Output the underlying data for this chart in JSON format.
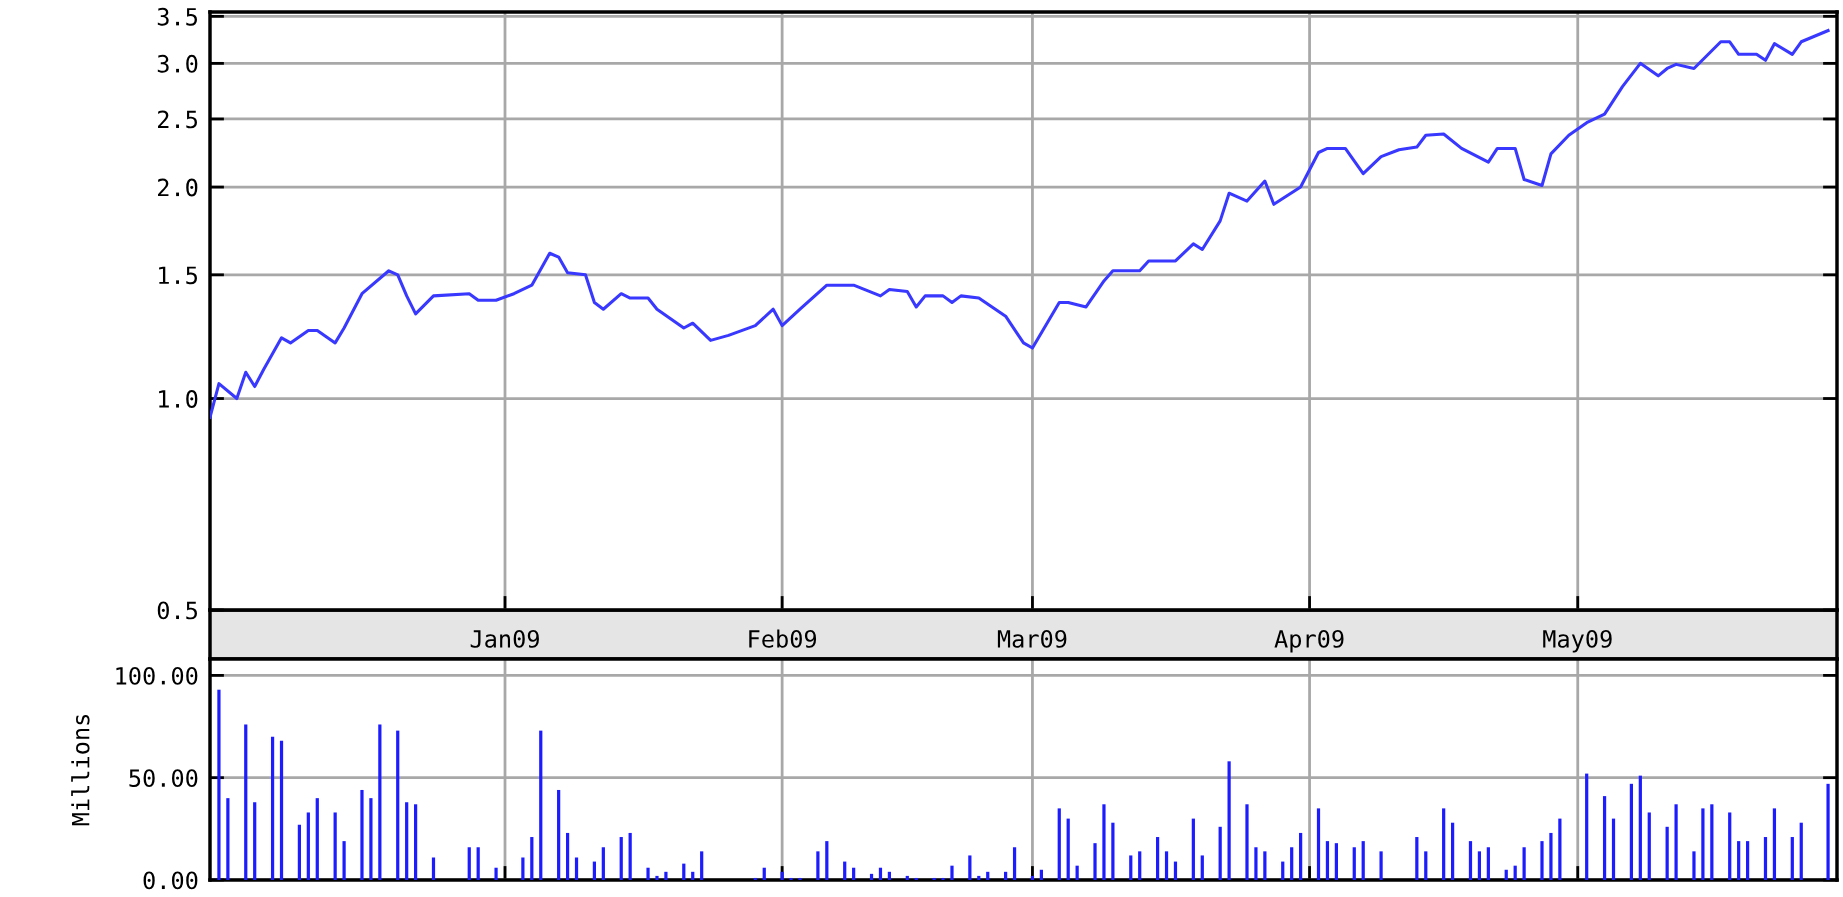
{
  "chart_data": [
    {
      "type": "line",
      "x": [
        "2008-11-29",
        "2008-11-30",
        "2008-12-02",
        "2008-12-03",
        "2008-12-04",
        "2008-12-05",
        "2008-12-07",
        "2008-12-08",
        "2008-12-10",
        "2008-12-11",
        "2008-12-13",
        "2008-12-14",
        "2008-12-16",
        "2008-12-19",
        "2008-12-20",
        "2008-12-21",
        "2008-12-22",
        "2008-12-24",
        "2008-12-28",
        "2008-12-29",
        "2008-12-31",
        "2009-01-02",
        "2009-01-04",
        "2009-01-06",
        "2009-01-07",
        "2009-01-08",
        "2009-01-10",
        "2009-01-11",
        "2009-01-12",
        "2009-01-14",
        "2009-01-15",
        "2009-01-17",
        "2009-01-18",
        "2009-01-21",
        "2009-01-22",
        "2009-01-24",
        "2009-01-26",
        "2009-01-29",
        "2009-01-31",
        "2009-02-01",
        "2009-02-03",
        "2009-02-06",
        "2009-02-09",
        "2009-02-12",
        "2009-02-13",
        "2009-02-15",
        "2009-02-16",
        "2009-02-17",
        "2009-02-19",
        "2009-02-20",
        "2009-02-21",
        "2009-02-23",
        "2009-02-26",
        "2009-02-28",
        "2009-03-01",
        "2009-03-04",
        "2009-03-05",
        "2009-03-07",
        "2009-03-09",
        "2009-03-10",
        "2009-03-13",
        "2009-03-14",
        "2009-03-17",
        "2009-03-19",
        "2009-03-20",
        "2009-03-22",
        "2009-03-23",
        "2009-03-25",
        "2009-03-27",
        "2009-03-28",
        "2009-03-31",
        "2009-04-02",
        "2009-04-03",
        "2009-04-05",
        "2009-04-07",
        "2009-04-09",
        "2009-04-11",
        "2009-04-13",
        "2009-04-14",
        "2009-04-16",
        "2009-04-18",
        "2009-04-21",
        "2009-04-22",
        "2009-04-24",
        "2009-04-25",
        "2009-04-27",
        "2009-04-28",
        "2009-04-30",
        "2009-05-02",
        "2009-05-04",
        "2009-05-06",
        "2009-05-08",
        "2009-05-10",
        "2009-05-11",
        "2009-05-12",
        "2009-05-14",
        "2009-05-17",
        "2009-05-18",
        "2009-05-19",
        "2009-05-21",
        "2009-05-22",
        "2009-05-23",
        "2009-05-25",
        "2009-05-26",
        "2009-05-29"
      ],
      "series": [
        {
          "color": "#3838ff",
          "values": [
            0.94,
            1.05,
            1.0,
            1.09,
            1.04,
            1.1,
            1.22,
            1.2,
            1.25,
            1.25,
            1.2,
            1.26,
            1.41,
            1.52,
            1.5,
            1.4,
            1.32,
            1.4,
            1.41,
            1.38,
            1.38,
            1.41,
            1.45,
            1.61,
            1.59,
            1.51,
            1.5,
            1.37,
            1.34,
            1.41,
            1.39,
            1.39,
            1.34,
            1.26,
            1.28,
            1.21,
            1.23,
            1.27,
            1.34,
            1.27,
            1.34,
            1.45,
            1.45,
            1.4,
            1.43,
            1.42,
            1.35,
            1.4,
            1.4,
            1.37,
            1.4,
            1.39,
            1.31,
            1.2,
            1.18,
            1.37,
            1.37,
            1.35,
            1.47,
            1.52,
            1.52,
            1.57,
            1.57,
            1.66,
            1.63,
            1.79,
            1.96,
            1.91,
            2.04,
            1.89,
            2.0,
            2.24,
            2.27,
            2.27,
            2.09,
            2.21,
            2.26,
            2.28,
            2.37,
            2.38,
            2.27,
            2.17,
            2.27,
            2.27,
            2.05,
            2.01,
            2.23,
            2.37,
            2.47,
            2.54,
            2.78,
            3.0,
            2.88,
            2.95,
            2.99,
            2.95,
            3.22,
            3.22,
            3.09,
            3.09,
            3.03,
            3.2,
            3.09,
            3.22,
            3.34
          ]
        }
      ],
      "xlim": [
        "2008-11-29",
        "2009-05-30"
      ],
      "xticks": [
        {
          "value": "2009-01-01",
          "label": "Jan09"
        },
        {
          "value": "2009-02-01",
          "label": "Feb09"
        },
        {
          "value": "2009-03-01",
          "label": "Mar09"
        },
        {
          "value": "2009-04-01",
          "label": "Apr09"
        },
        {
          "value": "2009-05-01",
          "label": "May09"
        }
      ],
      "ylim": [
        0.5,
        3.55
      ],
      "log": true,
      "yticks": [
        {
          "value": 0.5,
          "label": "0.5"
        },
        {
          "value": 1.0,
          "label": "1.0"
        },
        {
          "value": 1.5,
          "label": "1.5"
        },
        {
          "value": 2.0,
          "label": "2.0"
        },
        {
          "value": 2.5,
          "label": "2.5"
        },
        {
          "value": 3.0,
          "label": "3.0"
        },
        {
          "value": 3.5,
          "label": "3.5"
        }
      ],
      "grid": true
    },
    {
      "type": "bar",
      "x": [
        "2008-11-30",
        "2008-12-01",
        "2008-12-03",
        "2008-12-04",
        "2008-12-06",
        "2008-12-07",
        "2008-12-09",
        "2008-12-10",
        "2008-12-11",
        "2008-12-13",
        "2008-12-14",
        "2008-12-16",
        "2008-12-17",
        "2008-12-18",
        "2008-12-20",
        "2008-12-21",
        "2008-12-22",
        "2008-12-24",
        "2008-12-28",
        "2008-12-29",
        "2008-12-31",
        "2009-01-03",
        "2009-01-04",
        "2009-01-05",
        "2009-01-07",
        "2009-01-08",
        "2009-01-09",
        "2009-01-11",
        "2009-01-12",
        "2009-01-14",
        "2009-01-15",
        "2009-01-17",
        "2009-01-18",
        "2009-01-19",
        "2009-01-21",
        "2009-01-22",
        "2009-01-23",
        "2009-01-29",
        "2009-01-30",
        "2009-02-01",
        "2009-02-02",
        "2009-02-03",
        "2009-02-05",
        "2009-02-06",
        "2009-02-08",
        "2009-02-09",
        "2009-02-11",
        "2009-02-12",
        "2009-02-13",
        "2009-02-15",
        "2009-02-16",
        "2009-02-18",
        "2009-02-19",
        "2009-02-20",
        "2009-02-22",
        "2009-02-23",
        "2009-02-24",
        "2009-02-26",
        "2009-02-27",
        "2009-03-01",
        "2009-03-02",
        "2009-03-04",
        "2009-03-05",
        "2009-03-06",
        "2009-03-08",
        "2009-03-09",
        "2009-03-10",
        "2009-03-12",
        "2009-03-13",
        "2009-03-15",
        "2009-03-16",
        "2009-03-17",
        "2009-03-19",
        "2009-03-20",
        "2009-03-22",
        "2009-03-23",
        "2009-03-25",
        "2009-03-26",
        "2009-03-27",
        "2009-03-29",
        "2009-03-30",
        "2009-03-31",
        "2009-04-02",
        "2009-04-03",
        "2009-04-04",
        "2009-04-06",
        "2009-04-07",
        "2009-04-09",
        "2009-04-13",
        "2009-04-14",
        "2009-04-16",
        "2009-04-17",
        "2009-04-19",
        "2009-04-20",
        "2009-04-21",
        "2009-04-23",
        "2009-04-24",
        "2009-04-25",
        "2009-04-27",
        "2009-04-28",
        "2009-04-29",
        "2009-05-02",
        "2009-05-04",
        "2009-05-05",
        "2009-05-07",
        "2009-05-08",
        "2009-05-09",
        "2009-05-11",
        "2009-05-12",
        "2009-05-14",
        "2009-05-15",
        "2009-05-16",
        "2009-05-18",
        "2009-05-19",
        "2009-05-20",
        "2009-05-22",
        "2009-05-23",
        "2009-05-25",
        "2009-05-26",
        "2009-05-29"
      ],
      "values": [
        93,
        40,
        76,
        38,
        70,
        68,
        27,
        33,
        40,
        33,
        19,
        44,
        40,
        76,
        73,
        38,
        37,
        11,
        16,
        16,
        6,
        11,
        21,
        73,
        44,
        23,
        11,
        9,
        16,
        21,
        23,
        6,
        2,
        4,
        8,
        4,
        14,
        1,
        6,
        4,
        1,
        1,
        14,
        19,
        9,
        6,
        3,
        6,
        4,
        2,
        1,
        1,
        1,
        7,
        12,
        2,
        4,
        4,
        16,
        2,
        5,
        35,
        30,
        7,
        18,
        37,
        28,
        12,
        14,
        21,
        14,
        9,
        30,
        12,
        26,
        58,
        37,
        16,
        14,
        9,
        16,
        23,
        35,
        19,
        18,
        16,
        19,
        14,
        21,
        14,
        35,
        28,
        19,
        14,
        16,
        5,
        7,
        16,
        19,
        23,
        30,
        52,
        41,
        30,
        47,
        51,
        33,
        26,
        37,
        14,
        35,
        37,
        33,
        19,
        19,
        21,
        35,
        21,
        28,
        47
      ],
      "color": "#1c1cff",
      "ylabel": "Millions",
      "xlim": [
        "2008-11-29",
        "2009-05-30"
      ],
      "xticks": [
        {
          "value": "2009-01-01",
          "label": null
        },
        {
          "value": "2009-02-01",
          "label": null
        },
        {
          "value": "2009-03-01",
          "label": null
        },
        {
          "value": "2009-04-01",
          "label": null
        },
        {
          "value": "2009-05-01",
          "label": null
        }
      ],
      "ylim": [
        0,
        108
      ],
      "yticks": [
        {
          "value": 0,
          "label": "0.00"
        },
        {
          "value": 50,
          "label": "50.00"
        },
        {
          "value": 100,
          "label": "100.00"
        }
      ],
      "tick_labels": "y",
      "grid": true
    }
  ]
}
